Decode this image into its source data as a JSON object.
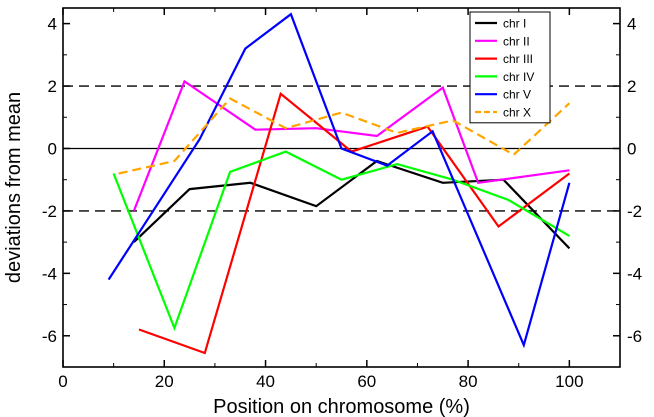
{
  "chart_data": {
    "type": "line",
    "xlabel": "Position on chromosome (%)",
    "ylabel": "deviations from mean",
    "xlim": [
      0,
      110
    ],
    "ylim": [
      -7,
      4.5
    ],
    "xticks": [
      0,
      20,
      40,
      60,
      80,
      100
    ],
    "yticks": [
      -6,
      -4,
      -2,
      0,
      2,
      4
    ],
    "ytick_labels_right": true,
    "reference_lines": [
      {
        "y": 0,
        "style": "solid"
      },
      {
        "y": 2,
        "style": "dashed"
      },
      {
        "y": -2,
        "style": "dashed"
      }
    ],
    "legend_position": "top-right",
    "series": [
      {
        "name": "chr I",
        "color": "#000000",
        "style": "solid",
        "x": [
          14,
          25,
          37,
          50,
          62,
          75,
          87,
          100
        ],
        "y": [
          -3.0,
          -1.3,
          -1.1,
          -1.85,
          -0.4,
          -1.1,
          -1.0,
          -3.2
        ]
      },
      {
        "name": "chr II",
        "color": "#ff00ff",
        "style": "solid",
        "x": [
          14,
          24,
          38,
          50,
          62,
          75,
          82,
          100
        ],
        "y": [
          -2.0,
          2.15,
          0.6,
          0.65,
          0.4,
          1.95,
          -1.1,
          -0.7
        ]
      },
      {
        "name": "chr III",
        "color": "#ff0000",
        "style": "solid",
        "x": [
          15,
          28,
          43,
          57,
          72,
          86,
          100
        ],
        "y": [
          -5.8,
          -6.55,
          1.75,
          -0.1,
          0.7,
          -2.5,
          -0.8
        ]
      },
      {
        "name": "chr IV",
        "color": "#00ff00",
        "style": "solid",
        "x": [
          10,
          22,
          33,
          44,
          55,
          66,
          77,
          88,
          100
        ],
        "y": [
          -0.8,
          -5.75,
          -0.75,
          -0.1,
          -1.0,
          -0.5,
          -1.0,
          -1.65,
          -2.8
        ]
      },
      {
        "name": "chr V",
        "color": "#0000ff",
        "style": "solid",
        "x": [
          9,
          27,
          36,
          45,
          55,
          64,
          73,
          91,
          100
        ],
        "y": [
          -4.2,
          0.3,
          3.2,
          4.3,
          0.0,
          -0.55,
          0.55,
          -6.3,
          -1.1
        ]
      },
      {
        "name": "chr X",
        "color": "#ffa500",
        "style": "dashed",
        "x": [
          11,
          22,
          33,
          44,
          55,
          66,
          77,
          89,
          100
        ],
        "y": [
          -0.8,
          -0.4,
          1.6,
          0.65,
          1.15,
          0.5,
          0.9,
          -0.2,
          1.45
        ]
      }
    ]
  }
}
